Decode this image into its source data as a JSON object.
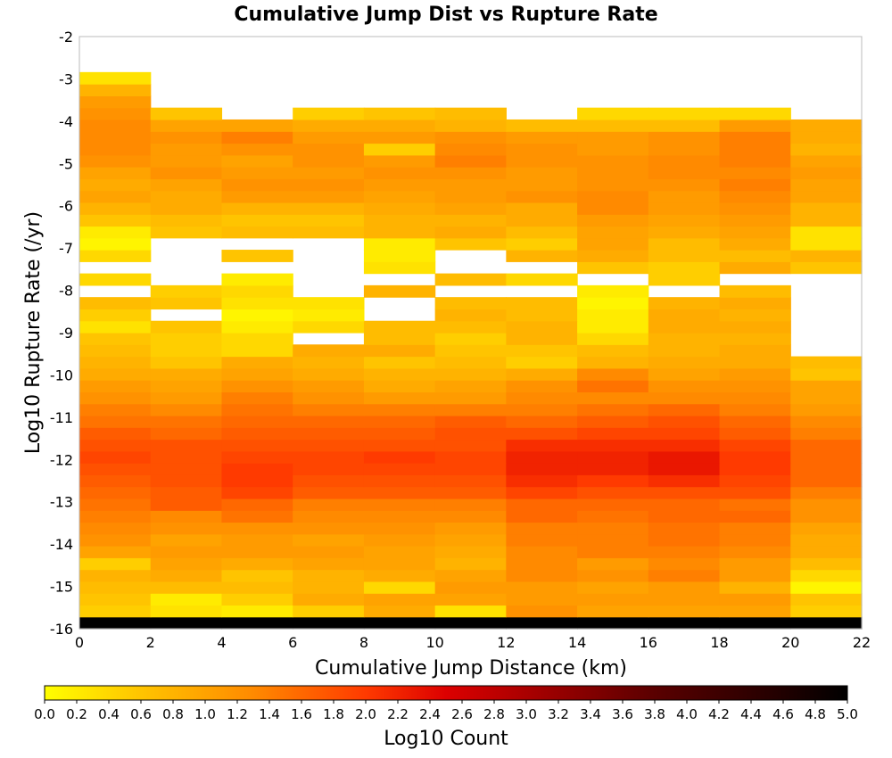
{
  "chart_data": {
    "type": "heatmap",
    "title": "Cumulative Jump Dist vs Rupture Rate",
    "xlabel": "Cumulative Jump Distance (km)",
    "ylabel": "Log10 Rupture Rate (/yr)",
    "xlim": [
      0,
      22
    ],
    "ylim": [
      -16,
      -2
    ],
    "x_ticks": [
      0,
      2,
      4,
      6,
      8,
      10,
      12,
      14,
      16,
      18,
      20,
      22
    ],
    "y_ticks": [
      -2,
      -3,
      -4,
      -5,
      -6,
      -7,
      -8,
      -9,
      -10,
      -11,
      -12,
      -13,
      -14,
      -15,
      -16
    ],
    "x_bin_width": 2,
    "y_bin_height": 0.28,
    "y_bin_start": -16,
    "x_bins": [
      1,
      3,
      5,
      7,
      9,
      11,
      13,
      15,
      17,
      19,
      21
    ],
    "colorbar": {
      "label": "Log10 Count",
      "min": 0.0,
      "max": 5.0,
      "ticks": [
        "0.0",
        "0.2",
        "0.4",
        "0.6",
        "0.8",
        "1.0",
        "1.2",
        "1.4",
        "1.6",
        "1.8",
        "2.0",
        "2.2",
        "2.4",
        "2.6",
        "2.8",
        "3.0",
        "3.2",
        "3.4",
        "3.6",
        "3.8",
        "4.0",
        "4.2",
        "4.4",
        "4.6",
        "4.8",
        "5.0"
      ],
      "colors": [
        "#ffff00",
        "#ffc400",
        "#ff8a00",
        "#ff3a00",
        "#dc0000",
        "#a00000",
        "#5a0000",
        "#280000",
        "#000000"
      ]
    },
    "values_note_rows_bottom_to_top": "rows start at y=-16 with height 0.28; null = no data",
    "values": [
      [
        5.0,
        5.0,
        5.0,
        5.0,
        5.0,
        5.0,
        5.0,
        5.0,
        5.0,
        5.0,
        5.0
      ],
      [
        0.5,
        0.3,
        0.2,
        0.5,
        0.9,
        0.3,
        1.2,
        1.0,
        1.0,
        1.0,
        0.5
      ],
      [
        0.6,
        0.2,
        0.5,
        0.9,
        1.0,
        1.0,
        1.1,
        1.1,
        1.1,
        1.1,
        0.6
      ],
      [
        0.7,
        0.7,
        0.7,
        0.8,
        0.4,
        1.1,
        1.1,
        1.0,
        1.1,
        0.8,
        0.1
      ],
      [
        0.8,
        0.9,
        0.6,
        0.8,
        0.9,
        1.0,
        1.3,
        1.2,
        1.4,
        1.1,
        0.4
      ],
      [
        0.5,
        1.0,
        0.9,
        1.0,
        1.0,
        0.8,
        1.3,
        1.1,
        1.3,
        1.1,
        0.7
      ],
      [
        1.0,
        1.1,
        1.1,
        1.1,
        1.0,
        0.9,
        1.3,
        1.4,
        1.4,
        1.3,
        0.9
      ],
      [
        1.2,
        1.0,
        1.1,
        1.0,
        1.1,
        1.0,
        1.4,
        1.4,
        1.5,
        1.4,
        0.9
      ],
      [
        1.3,
        1.2,
        1.2,
        1.2,
        1.2,
        1.1,
        1.4,
        1.4,
        1.5,
        1.4,
        1.0
      ],
      [
        1.4,
        1.3,
        1.5,
        1.3,
        1.3,
        1.3,
        1.6,
        1.5,
        1.6,
        1.6,
        1.2
      ],
      [
        1.5,
        1.7,
        1.6,
        1.4,
        1.4,
        1.4,
        1.6,
        1.6,
        1.6,
        1.5,
        1.2
      ],
      [
        1.6,
        1.7,
        1.9,
        1.7,
        1.7,
        1.7,
        1.9,
        1.8,
        1.8,
        1.8,
        1.4
      ],
      [
        1.7,
        1.8,
        2.0,
        1.8,
        1.8,
        1.8,
        2.1,
        2.0,
        2.1,
        1.9,
        1.6
      ],
      [
        1.8,
        1.8,
        2.0,
        1.9,
        1.9,
        1.9,
        2.2,
        2.2,
        2.3,
        2.0,
        1.6
      ],
      [
        1.9,
        1.8,
        1.9,
        1.9,
        2.0,
        1.9,
        2.2,
        2.2,
        2.3,
        2.0,
        1.6
      ],
      [
        1.8,
        1.8,
        1.8,
        1.8,
        1.8,
        1.8,
        2.1,
        2.1,
        2.1,
        1.9,
        1.6
      ],
      [
        1.7,
        1.6,
        1.7,
        1.7,
        1.7,
        1.8,
        1.8,
        1.9,
        1.9,
        1.7,
        1.4
      ],
      [
        1.5,
        1.5,
        1.6,
        1.6,
        1.6,
        1.7,
        1.6,
        1.7,
        1.8,
        1.6,
        1.3
      ],
      [
        1.4,
        1.3,
        1.5,
        1.4,
        1.4,
        1.4,
        1.4,
        1.5,
        1.6,
        1.4,
        1.1
      ],
      [
        1.2,
        1.1,
        1.4,
        1.2,
        1.1,
        1.1,
        1.3,
        1.3,
        1.3,
        1.3,
        1.0
      ],
      [
        1.1,
        1.0,
        1.2,
        1.1,
        0.9,
        1.0,
        1.2,
        1.5,
        1.2,
        1.2,
        1.0
      ],
      [
        0.9,
        0.9,
        1.0,
        0.9,
        0.8,
        0.8,
        0.9,
        1.3,
        1.0,
        1.1,
        0.6
      ],
      [
        0.8,
        0.6,
        0.9,
        0.8,
        0.6,
        0.7,
        0.5,
        0.8,
        0.9,
        0.9,
        0.7
      ],
      [
        0.7,
        0.5,
        0.4,
        0.9,
        0.9,
        0.6,
        0.6,
        0.7,
        0.8,
        0.9,
        null
      ],
      [
        0.6,
        0.5,
        0.4,
        null,
        0.7,
        0.5,
        0.8,
        0.4,
        0.8,
        0.8,
        null
      ],
      [
        0.3,
        0.6,
        0.2,
        0.4,
        0.7,
        0.7,
        0.8,
        0.2,
        0.9,
        0.9,
        null
      ],
      [
        0.5,
        null,
        0.1,
        0.2,
        null,
        0.8,
        0.7,
        0.2,
        0.9,
        0.8,
        null
      ],
      [
        0.7,
        0.6,
        0.3,
        0.3,
        null,
        0.7,
        0.7,
        0.1,
        0.8,
        0.9,
        null
      ],
      [
        null,
        0.5,
        0.4,
        null,
        0.8,
        null,
        null,
        0.2,
        null,
        0.7,
        null
      ],
      [
        0.4,
        null,
        0.2,
        null,
        null,
        0.7,
        0.4,
        null,
        0.5,
        null,
        null
      ],
      [
        null,
        null,
        null,
        null,
        0.3,
        null,
        null,
        0.6,
        0.5,
        0.9,
        0.6
      ],
      [
        0.4,
        null,
        0.6,
        null,
        0.2,
        null,
        0.8,
        0.9,
        0.7,
        0.7,
        0.8
      ],
      [
        0.1,
        null,
        null,
        null,
        0.2,
        0.6,
        0.5,
        1.0,
        0.7,
        0.9,
        0.3
      ],
      [
        0.2,
        0.6,
        0.7,
        0.7,
        0.8,
        0.9,
        0.7,
        1.0,
        0.9,
        1.0,
        0.3
      ],
      [
        0.6,
        0.7,
        0.6,
        0.6,
        0.8,
        0.8,
        0.9,
        1.1,
        1.0,
        1.1,
        0.8
      ],
      [
        0.8,
        0.9,
        0.8,
        0.8,
        0.9,
        1.0,
        0.9,
        1.3,
        1.1,
        1.2,
        0.8
      ],
      [
        1.0,
        0.9,
        1.1,
        1.1,
        1.0,
        1.1,
        1.2,
        1.3,
        1.1,
        1.3,
        1.0
      ],
      [
        0.9,
        1.0,
        1.2,
        1.2,
        1.1,
        1.1,
        1.1,
        1.2,
        1.2,
        1.4,
        1.0
      ],
      [
        1.0,
        1.2,
        1.1,
        1.1,
        1.2,
        1.2,
        1.1,
        1.2,
        1.3,
        1.3,
        1.1
      ],
      [
        1.2,
        1.1,
        1.0,
        1.2,
        1.1,
        1.4,
        1.2,
        1.2,
        1.3,
        1.4,
        1.0
      ],
      [
        1.3,
        1.1,
        1.2,
        1.2,
        0.5,
        1.3,
        1.2,
        1.1,
        1.2,
        1.4,
        0.8
      ],
      [
        1.3,
        1.2,
        1.4,
        1.1,
        1.1,
        1.2,
        1.1,
        1.1,
        1.2,
        1.4,
        0.9
      ],
      [
        1.3,
        1.0,
        1.0,
        0.9,
        0.9,
        0.8,
        0.7,
        0.7,
        0.7,
        1.1,
        0.9
      ],
      [
        1.2,
        0.6,
        null,
        0.5,
        0.6,
        0.7,
        null,
        0.4,
        0.4,
        0.4,
        null
      ],
      [
        1.1,
        null,
        null,
        null,
        null,
        null,
        null,
        null,
        null,
        null,
        null
      ],
      [
        0.8,
        null,
        null,
        null,
        null,
        null,
        null,
        null,
        null,
        null,
        null
      ],
      [
        0.3,
        null,
        null,
        null,
        null,
        null,
        null,
        null,
        null,
        null,
        null
      ],
      [
        null,
        null,
        null,
        null,
        null,
        null,
        null,
        null,
        null,
        null,
        null
      ],
      [
        null,
        null,
        null,
        null,
        null,
        null,
        null,
        null,
        null,
        null,
        null
      ],
      [
        null,
        null,
        null,
        null,
        null,
        null,
        null,
        null,
        null,
        null,
        null
      ]
    ]
  }
}
